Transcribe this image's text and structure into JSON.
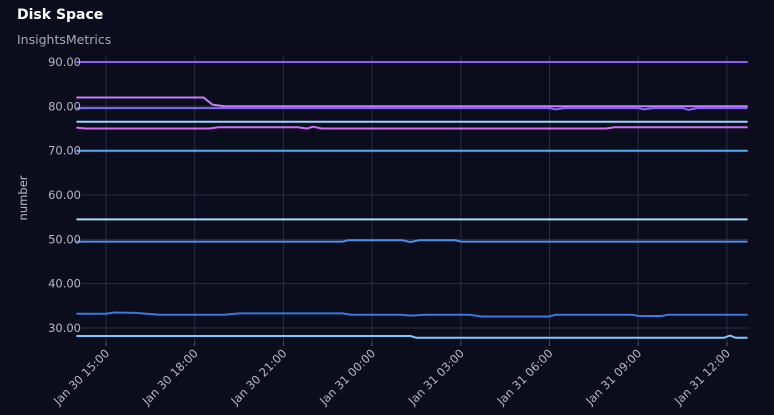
{
  "panel": {
    "title": "Disk Space",
    "subtitle": "InsightsMetrics"
  },
  "chart_data": {
    "type": "line",
    "title": "Disk Space",
    "subtitle": "InsightsMetrics",
    "ylabel": "number",
    "xlabel": "",
    "ylim": [
      27,
      90.5
    ],
    "y_ticks": [
      "90.00",
      "80.00",
      "70.00",
      "60.00",
      "50.00",
      "40.00",
      "30.00"
    ],
    "y_tick_values": [
      90,
      80,
      70,
      60,
      50,
      40,
      30
    ],
    "x_tick_labels": [
      "Jan 30 15:00",
      "Jan 30 18:00",
      "Jan 30 21:00",
      "Jan 31 00:00",
      "Jan 31 03:00",
      "Jan 31 06:00",
      "Jan 31 09:00",
      "Jan 31 12:00"
    ],
    "x_tick_hours": [
      15,
      18,
      21,
      24,
      27,
      30,
      33,
      36
    ],
    "x_range_hours": [
      14.0,
      36.7
    ],
    "grid": true,
    "legend": "none",
    "series": [
      {
        "color": "#8b5cf6",
        "points": [
          [
            14.0,
            90.0
          ],
          [
            36.7,
            90.0
          ]
        ]
      },
      {
        "color": "#c77dff",
        "points": [
          [
            14.0,
            82.0
          ],
          [
            16.0,
            82.0
          ],
          [
            18.0,
            82.0
          ],
          [
            18.3,
            82.0
          ],
          [
            18.6,
            80.4
          ],
          [
            19.0,
            80.0
          ],
          [
            36.7,
            80.0
          ]
        ]
      },
      {
        "color": "#7c6cf0",
        "points": [
          [
            14.0,
            79.6
          ],
          [
            30.0,
            79.6
          ],
          [
            30.2,
            79.3
          ],
          [
            30.5,
            79.6
          ],
          [
            33.0,
            79.6
          ],
          [
            33.2,
            79.3
          ],
          [
            33.5,
            79.6
          ],
          [
            34.5,
            79.6
          ],
          [
            34.7,
            79.2
          ],
          [
            35.0,
            79.6
          ],
          [
            36.7,
            79.6
          ]
        ]
      },
      {
        "color": "#9bd4ff",
        "points": [
          [
            14.0,
            76.5
          ],
          [
            36.7,
            76.5
          ]
        ]
      },
      {
        "color": "#d26ef5",
        "points": [
          [
            14.0,
            75.2
          ],
          [
            14.3,
            75.0
          ],
          [
            18.5,
            75.0
          ],
          [
            18.8,
            75.3
          ],
          [
            21.5,
            75.3
          ],
          [
            21.8,
            75.0
          ],
          [
            22.0,
            75.4
          ],
          [
            22.3,
            75.0
          ],
          [
            31.9,
            75.0
          ],
          [
            32.2,
            75.3
          ],
          [
            36.7,
            75.3
          ]
        ]
      },
      {
        "color": "#5aa9f5",
        "points": [
          [
            14.0,
            70.0
          ],
          [
            36.7,
            70.0
          ]
        ]
      },
      {
        "color": "#a6ddff",
        "points": [
          [
            14.0,
            54.5
          ],
          [
            36.7,
            54.5
          ]
        ]
      },
      {
        "color": "#4e8fea",
        "points": [
          [
            14.0,
            49.5
          ],
          [
            23.0,
            49.5
          ],
          [
            23.2,
            49.8
          ],
          [
            25.0,
            49.8
          ],
          [
            25.3,
            49.4
          ],
          [
            25.6,
            49.8
          ],
          [
            26.8,
            49.8
          ],
          [
            27.0,
            49.5
          ],
          [
            36.7,
            49.5
          ]
        ]
      },
      {
        "color": "#3a78e0",
        "points": [
          [
            14.0,
            33.2
          ],
          [
            15.0,
            33.2
          ],
          [
            15.3,
            33.5
          ],
          [
            16.0,
            33.4
          ],
          [
            16.8,
            33.0
          ],
          [
            19.0,
            33.0
          ],
          [
            19.5,
            33.3
          ],
          [
            23.0,
            33.3
          ],
          [
            23.3,
            33.0
          ],
          [
            25.0,
            33.0
          ],
          [
            25.3,
            32.8
          ],
          [
            25.8,
            33.0
          ],
          [
            27.3,
            33.0
          ],
          [
            27.7,
            32.6
          ],
          [
            30.0,
            32.6
          ],
          [
            30.2,
            33.0
          ],
          [
            32.8,
            33.0
          ],
          [
            33.0,
            32.7
          ],
          [
            33.8,
            32.7
          ],
          [
            34.0,
            33.0
          ],
          [
            36.7,
            33.0
          ]
        ]
      },
      {
        "color": "#7cc8ff",
        "points": [
          [
            14.0,
            28.2
          ],
          [
            25.3,
            28.2
          ],
          [
            25.5,
            27.8
          ],
          [
            35.9,
            27.8
          ],
          [
            36.1,
            28.3
          ],
          [
            36.3,
            27.8
          ],
          [
            36.7,
            27.8
          ]
        ]
      }
    ]
  }
}
